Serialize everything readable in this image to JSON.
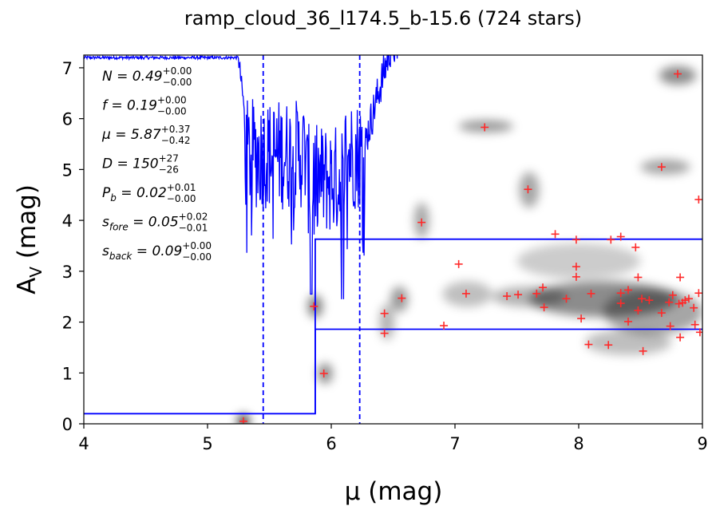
{
  "chart_data": {
    "type": "scatter",
    "title": "ramp_cloud_36_l174.5_b-15.6 (724 stars)",
    "xlabel": "μ (mag)",
    "ylabel_main": "A",
    "ylabel_sub": "V",
    "ylabel_unit": " (mag)",
    "xlim": [
      4,
      9
    ],
    "ylim": [
      0,
      7.25
    ],
    "xticks": [
      "4",
      "5",
      "6",
      "7",
      "8",
      "9"
    ],
    "yticks": [
      "0",
      "1",
      "2",
      "3",
      "4",
      "5",
      "6",
      "7"
    ],
    "grid": false,
    "marker_color": "#ff2a2a",
    "line_color": "#0000ff",
    "annotations": [
      {
        "lhs": "N = 0.49",
        "sup": "+0.00",
        "sub": "−0.00"
      },
      {
        "lhs": "f = 0.19",
        "sup": "+0.00",
        "sub": "−0.00"
      },
      {
        "lhs": "μ = 5.87",
        "sup": "+0.37",
        "sub": "−0.42"
      },
      {
        "lhs": "D = 150",
        "sup": "+27",
        "sub": "−26"
      },
      {
        "lhs": "P",
        "lhs_sub": "b",
        "rhs": " = 0.02",
        "sup": "+0.01",
        "sub": "−0.00"
      },
      {
        "lhs": "s",
        "lhs_sub": "fore",
        "rhs": " = 0.05",
        "sup": "+0.02",
        "sub": "−0.01"
      },
      {
        "lhs": "s",
        "lhs_sub": "back",
        "rhs": " = 0.09",
        "sup": "+0.00",
        "sub": "−0.00"
      }
    ],
    "vlines_dashed": [
      5.45,
      6.23
    ],
    "profile_upper": [
      [
        4.0,
        0.2
      ],
      [
        5.87,
        0.2
      ],
      [
        5.87,
        3.63
      ],
      [
        9.0,
        3.63
      ]
    ],
    "profile_lower": [
      [
        5.87,
        0.2
      ],
      [
        5.87,
        1.86
      ],
      [
        9.0,
        1.86
      ]
    ],
    "points": [
      [
        5.29,
        0.05
      ],
      [
        5.86,
        2.31
      ],
      [
        5.94,
        0.99
      ],
      [
        6.43,
        2.17
      ],
      [
        6.43,
        1.78
      ],
      [
        6.57,
        2.47
      ],
      [
        6.73,
        3.96
      ],
      [
        6.91,
        1.93
      ],
      [
        7.03,
        3.14
      ],
      [
        7.09,
        2.56
      ],
      [
        7.24,
        5.83
      ],
      [
        7.42,
        2.51
      ],
      [
        7.51,
        2.54
      ],
      [
        7.59,
        4.61
      ],
      [
        7.66,
        2.56
      ],
      [
        7.71,
        2.68
      ],
      [
        7.72,
        2.29
      ],
      [
        7.81,
        3.73
      ],
      [
        7.9,
        2.46
      ],
      [
        7.98,
        3.62
      ],
      [
        7.98,
        3.09
      ],
      [
        7.98,
        2.89
      ],
      [
        8.02,
        2.07
      ],
      [
        8.08,
        1.56
      ],
      [
        8.1,
        2.56
      ],
      [
        8.24,
        1.55
      ],
      [
        8.26,
        3.62
      ],
      [
        8.34,
        3.68
      ],
      [
        8.34,
        2.57
      ],
      [
        8.34,
        2.37
      ],
      [
        8.4,
        2.63
      ],
      [
        8.4,
        2.01
      ],
      [
        8.46,
        3.47
      ],
      [
        8.48,
        2.88
      ],
      [
        8.48,
        2.23
      ],
      [
        8.51,
        2.46
      ],
      [
        8.52,
        1.43
      ],
      [
        8.57,
        2.43
      ],
      [
        8.67,
        5.05
      ],
      [
        8.67,
        2.18
      ],
      [
        8.73,
        2.39
      ],
      [
        8.74,
        1.92
      ],
      [
        8.76,
        2.53
      ],
      [
        8.8,
        6.88
      ],
      [
        8.81,
        2.36
      ],
      [
        8.82,
        2.88
      ],
      [
        8.82,
        1.7
      ],
      [
        8.84,
        2.38
      ],
      [
        8.86,
        2.43
      ],
      [
        8.89,
        2.46
      ],
      [
        8.93,
        2.28
      ],
      [
        8.94,
        1.95
      ],
      [
        8.97,
        4.41
      ],
      [
        8.97,
        2.57
      ],
      [
        8.98,
        1.8
      ]
    ],
    "density_blobs": [
      {
        "x": 5.29,
        "y": 0.06,
        "sx": 0.05,
        "sy": 0.12,
        "a": 0.85
      },
      {
        "x": 5.87,
        "y": 2.31,
        "sx": 0.06,
        "sy": 0.22,
        "a": 0.5
      },
      {
        "x": 5.95,
        "y": 0.99,
        "sx": 0.06,
        "sy": 0.2,
        "a": 0.45
      },
      {
        "x": 6.45,
        "y": 2.0,
        "sx": 0.06,
        "sy": 0.35,
        "a": 0.3
      },
      {
        "x": 6.55,
        "y": 2.45,
        "sx": 0.07,
        "sy": 0.25,
        "a": 0.4
      },
      {
        "x": 6.73,
        "y": 4.0,
        "sx": 0.06,
        "sy": 0.35,
        "a": 0.35
      },
      {
        "x": 7.25,
        "y": 5.85,
        "sx": 0.22,
        "sy": 0.12,
        "a": 0.4
      },
      {
        "x": 7.6,
        "y": 4.6,
        "sx": 0.08,
        "sy": 0.35,
        "a": 0.35
      },
      {
        "x": 8.7,
        "y": 5.05,
        "sx": 0.2,
        "sy": 0.15,
        "a": 0.35
      },
      {
        "x": 8.8,
        "y": 6.85,
        "sx": 0.15,
        "sy": 0.18,
        "a": 0.45
      },
      {
        "x": 8.2,
        "y": 2.45,
        "sx": 0.6,
        "sy": 0.35,
        "a": 0.45
      },
      {
        "x": 8.6,
        "y": 2.2,
        "sx": 0.4,
        "sy": 0.45,
        "a": 0.35
      },
      {
        "x": 8.0,
        "y": 3.2,
        "sx": 0.5,
        "sy": 0.35,
        "a": 0.2
      },
      {
        "x": 7.6,
        "y": 2.5,
        "sx": 0.3,
        "sy": 0.2,
        "a": 0.3
      },
      {
        "x": 7.1,
        "y": 2.55,
        "sx": 0.2,
        "sy": 0.25,
        "a": 0.25
      },
      {
        "x": 8.4,
        "y": 1.6,
        "sx": 0.35,
        "sy": 0.25,
        "a": 0.25
      }
    ],
    "noise_line": {
      "x_start": 4.0,
      "x_end": 6.55,
      "flat_level": 7.2,
      "noisy_from": 5.25,
      "noisy_to": 6.28
    }
  }
}
